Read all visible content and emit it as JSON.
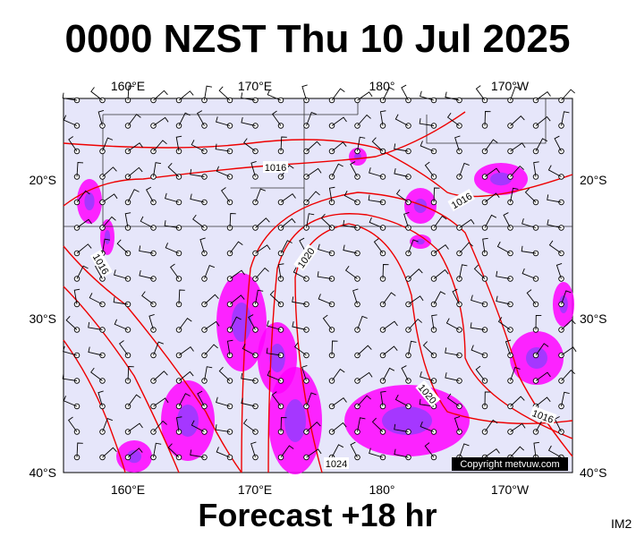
{
  "header": {
    "title": "0000 NZST Thu 10 Jul 2025"
  },
  "footer": {
    "subtitle": "Forecast +18 hr",
    "code": "IM2"
  },
  "map": {
    "lon_labels": [
      "160°E",
      "170°E",
      "180°",
      "170°W"
    ],
    "lat_labels": [
      "20°S",
      "30°S",
      "40°S"
    ],
    "isobar_labels": [
      1016,
      1016,
      1016,
      1020,
      1020,
      1016,
      1024
    ],
    "copyright": "Copyright metvuw.com"
  }
}
